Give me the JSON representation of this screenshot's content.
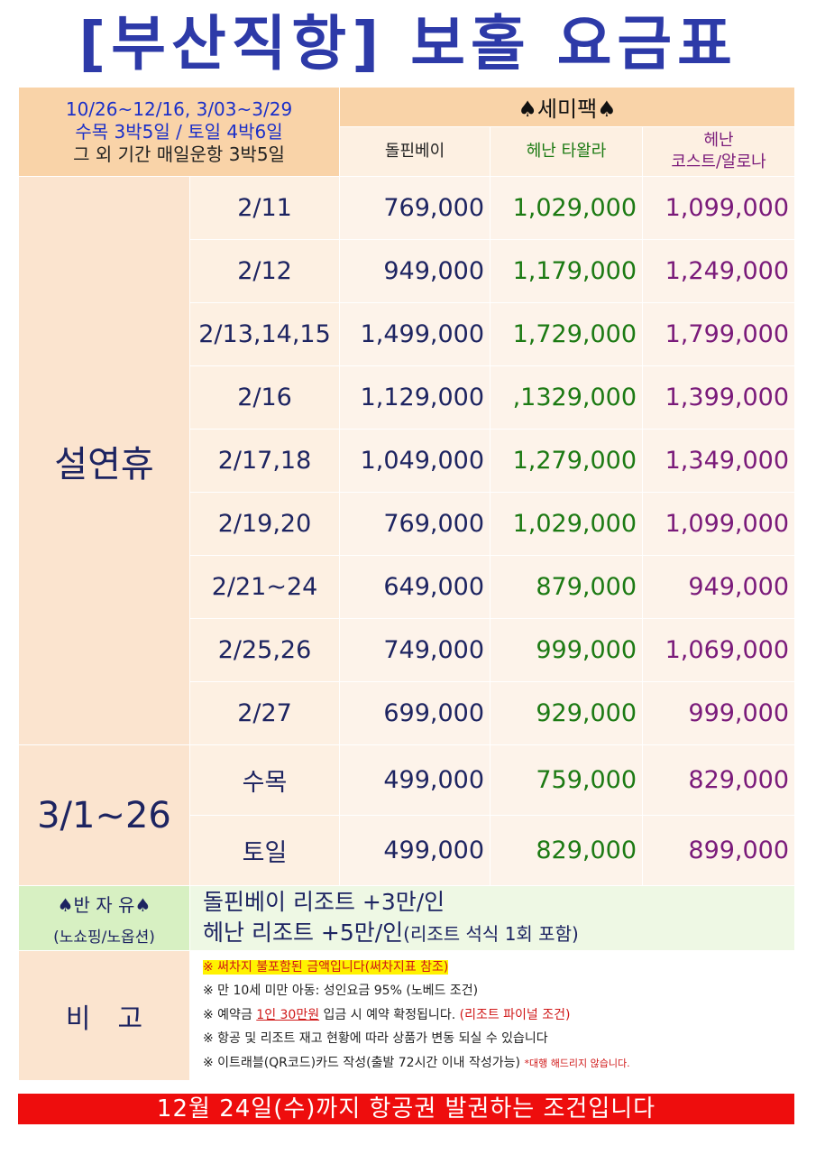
{
  "title": "[부산직항] 보홀 요금표",
  "header": {
    "period_line1": "10/26~12/16, 3/03~3/29",
    "period_line2": "수목 3박5일 / 토일 4박6일",
    "period_line3": "그 외 기간 매일운항 3박5일",
    "package": "♠세미팩♠",
    "col1": "돌핀베이",
    "col2": "헤난 타왈라",
    "col3a": "헤난",
    "col3b": "코스트/알로나"
  },
  "groups": {
    "seollal": "설연휴",
    "march": "3/1~26"
  },
  "rows": [
    {
      "date": "2/11",
      "p1": "769,000",
      "p2": "1,029,000",
      "p3": "1,099,000"
    },
    {
      "date": "2/12",
      "p1": "949,000",
      "p2": "1,179,000",
      "p3": "1,249,000"
    },
    {
      "date": "2/13,14,15",
      "p1": "1,499,000",
      "p2": "1,729,000",
      "p3": "1,799,000"
    },
    {
      "date": "2/16",
      "p1": "1,129,000",
      "p2": ",1329,000",
      "p3": "1,399,000"
    },
    {
      "date": "2/17,18",
      "p1": "1,049,000",
      "p2": "1,279,000",
      "p3": "1,349,000"
    },
    {
      "date": "2/19,20",
      "p1": "769,000",
      "p2": "1,029,000",
      "p3": "1,099,000"
    },
    {
      "date": "2/21~24",
      "p1": "649,000",
      "p2": "879,000",
      "p3": "949,000"
    },
    {
      "date": "2/25,26",
      "p1": "749,000",
      "p2": "999,000",
      "p3": "1,069,000"
    },
    {
      "date": "2/27",
      "p1": "699,000",
      "p2": "929,000",
      "p3": "999,000"
    },
    {
      "date": "수목",
      "p1": "499,000",
      "p2": "759,000",
      "p3": "829,000"
    },
    {
      "date": "토일",
      "p1": "499,000",
      "p2": "829,000",
      "p3": "899,000"
    }
  ],
  "half_free": {
    "label1": "♠반 자 유♠",
    "label2": "(노쇼핑/노옵션)",
    "line1": "돌핀베이 리조트 +3만/인",
    "line2_main": "헤난 리조트 +5만/인",
    "line2_small": "(리조트 석식 1회 포함)"
  },
  "notes": {
    "label": "비고",
    "n1": "※ 써차지 불포함된 금액입니다(써차지표 참조)",
    "n2": "※ 만 10세 미만 아동: 성인요금 95% (노베드 조건)",
    "n3_a": "※ 예약금 ",
    "n3_b": "1인 30만원",
    "n3_c": " 입금 시 예약 확정됩니다. ",
    "n3_d": "(리조트 파이널 조건)",
    "n4": "※ 항공 및 리조트 재고 현황에 따라 상품가 변동 되실 수 있습니다",
    "n5_a": "※ 이트래블(QR코드)카드 작성(출발 72시간 이내 작성가능) ",
    "n5_b": "*대행 해드리지 않습니다."
  },
  "banner": "12월 24일(수)까지 항공권 발권하는 조건입니다"
}
